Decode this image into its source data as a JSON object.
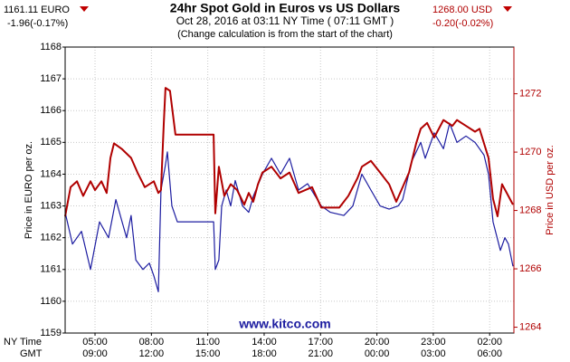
{
  "chart_data": {
    "type": "line",
    "title": "24hr Spot Gold in Euros vs US Dollars",
    "subtitle": "Oct 28, 2016 at 03:11 NY Time ( 07:11 GMT )",
    "note": "(Change calculation is from the start of the chart)",
    "watermark": "www.kitco.com",
    "left_quote": {
      "price": "1161.11 EURO",
      "change": "-1.96(-0.17%)"
    },
    "right_quote": {
      "price": "1268.00 USD",
      "change": "-0.20(-0.02%)"
    },
    "y_label": "Price in EURO per oz.",
    "y2_label": "Price in USD per oz.",
    "x_row_labels": [
      "NY Time",
      "GMT"
    ],
    "xlim": [
      3.41,
      27.29
    ],
    "xticks": [
      {
        "value": 5,
        "label": "05:00"
      },
      {
        "value": 8,
        "label": "08:00"
      },
      {
        "value": 11,
        "label": "11:00"
      },
      {
        "value": 14,
        "label": "14:00"
      },
      {
        "value": 17,
        "label": "17:00"
      },
      {
        "value": 20,
        "label": "20:00"
      },
      {
        "value": 23,
        "label": "23:00"
      },
      {
        "value": 26,
        "label": "02:00"
      }
    ],
    "xticks_gmt": [
      "09:00",
      "12:00",
      "15:00",
      "18:00",
      "21:00",
      "00:00",
      "03:00",
      "06:00"
    ],
    "ylim": [
      1159,
      1168
    ],
    "yticks": [
      1159,
      1160,
      1161,
      1162,
      1163,
      1164,
      1165,
      1166,
      1167,
      1168
    ],
    "y2lim": [
      1263.8,
      1273.6
    ],
    "y2ticks": [
      1264,
      1266,
      1268,
      1270,
      1272
    ],
    "grid": true,
    "series": [
      {
        "name": "EURO",
        "color": "#1c1ca0",
        "x": [
          3.41,
          3.8,
          4.28,
          4.76,
          5.24,
          5.72,
          6.11,
          6.44,
          6.68,
          6.92,
          7.17,
          7.55,
          7.89,
          8.13,
          8.37,
          8.51,
          8.75,
          8.85,
          9.09,
          9.38,
          11.31,
          11.4,
          11.59,
          11.74,
          11.98,
          12.22,
          12.46,
          12.85,
          13.18,
          13.42,
          13.91,
          14.39,
          14.87,
          15.35,
          15.83,
          16.31,
          17.04,
          17.52,
          18.24,
          18.72,
          19.2,
          19.68,
          20.17,
          20.65,
          21.13,
          21.37,
          21.85,
          22.33,
          22.57,
          23.05,
          23.54,
          23.87,
          24.26,
          24.74,
          25.22,
          25.7,
          25.94,
          26.18,
          26.57,
          26.81,
          27.0,
          27.24
        ],
        "values": [
          1162.8,
          1161.8,
          1162.2,
          1161.0,
          1162.5,
          1162.0,
          1163.2,
          1162.5,
          1162.0,
          1162.7,
          1161.3,
          1161.0,
          1161.2,
          1160.8,
          1160.3,
          1163.5,
          1164.3,
          1164.7,
          1163.0,
          1162.5,
          1162.5,
          1161.0,
          1161.3,
          1163.0,
          1163.5,
          1163.0,
          1163.8,
          1163.0,
          1162.8,
          1163.3,
          1164.0,
          1164.5,
          1164.0,
          1164.5,
          1163.5,
          1163.7,
          1163.0,
          1162.8,
          1162.7,
          1163.0,
          1164.0,
          1163.5,
          1163.0,
          1162.9,
          1163.0,
          1163.2,
          1164.4,
          1165.0,
          1164.5,
          1165.3,
          1164.8,
          1165.6,
          1165.0,
          1165.2,
          1165.0,
          1164.6,
          1164.0,
          1162.5,
          1161.6,
          1162.0,
          1161.8,
          1161.1
        ]
      },
      {
        "name": "USD",
        "color": "#b00000",
        "axis": "y2",
        "x": [
          3.41,
          3.7,
          4.04,
          4.37,
          4.76,
          5.0,
          5.34,
          5.62,
          5.82,
          6.01,
          6.44,
          6.92,
          7.26,
          7.65,
          8.13,
          8.37,
          8.51,
          8.66,
          8.75,
          8.99,
          9.28,
          11.31,
          11.4,
          11.59,
          11.88,
          12.22,
          12.56,
          12.94,
          13.18,
          13.42,
          13.67,
          13.91,
          14.39,
          14.87,
          15.35,
          15.83,
          16.55,
          17.04,
          18.0,
          18.48,
          18.96,
          19.2,
          19.68,
          20.17,
          20.65,
          21.03,
          21.37,
          21.71,
          22.09,
          22.33,
          22.67,
          23.05,
          23.54,
          24.02,
          24.26,
          24.74,
          25.22,
          25.46,
          25.7,
          25.94,
          26.18,
          26.42,
          26.66,
          26.91,
          27.24
        ],
        "values": [
          1267.8,
          1268.8,
          1269.0,
          1268.5,
          1269.0,
          1268.7,
          1269.0,
          1268.6,
          1269.8,
          1270.3,
          1270.1,
          1269.8,
          1269.3,
          1268.8,
          1269.0,
          1268.6,
          1268.7,
          1271.0,
          1272.2,
          1272.1,
          1270.6,
          1270.6,
          1267.9,
          1269.5,
          1268.5,
          1268.9,
          1268.7,
          1268.2,
          1268.6,
          1268.3,
          1268.9,
          1269.3,
          1269.5,
          1269.1,
          1269.3,
          1268.6,
          1268.8,
          1268.1,
          1268.1,
          1268.5,
          1269.1,
          1269.5,
          1269.7,
          1269.3,
          1268.9,
          1268.3,
          1268.8,
          1269.3,
          1270.3,
          1270.8,
          1271.0,
          1270.5,
          1271.1,
          1270.9,
          1271.1,
          1270.9,
          1270.7,
          1270.8,
          1270.3,
          1269.8,
          1268.4,
          1267.8,
          1268.9,
          1268.6,
          1268.2
        ]
      }
    ]
  }
}
